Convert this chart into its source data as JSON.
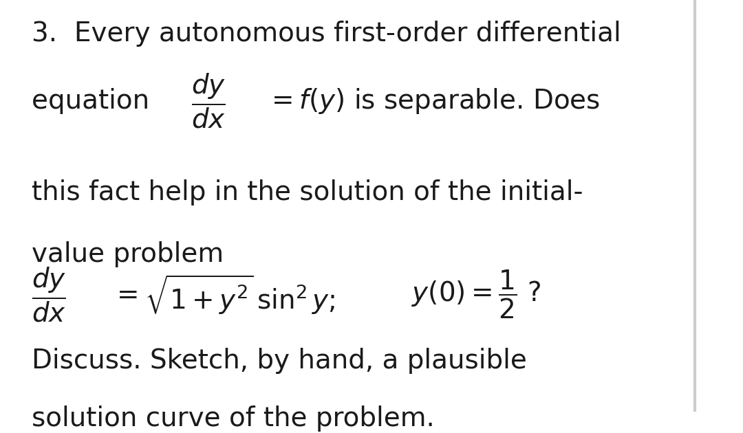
{
  "background_color": "#ffffff",
  "text_color": "#1a1a1a",
  "figure_width": 10.8,
  "figure_height": 6.3,
  "dpi": 100,
  "fontsize": 28,
  "right_border_color": "#cccccc",
  "line1": "3.  Every autonomous first-order differential",
  "line3": "this fact help in the solution of the initial-",
  "line4": "value problem",
  "line6": "Discuss. Sketch, by hand, a plausible",
  "line7": "solution curve of the problem."
}
